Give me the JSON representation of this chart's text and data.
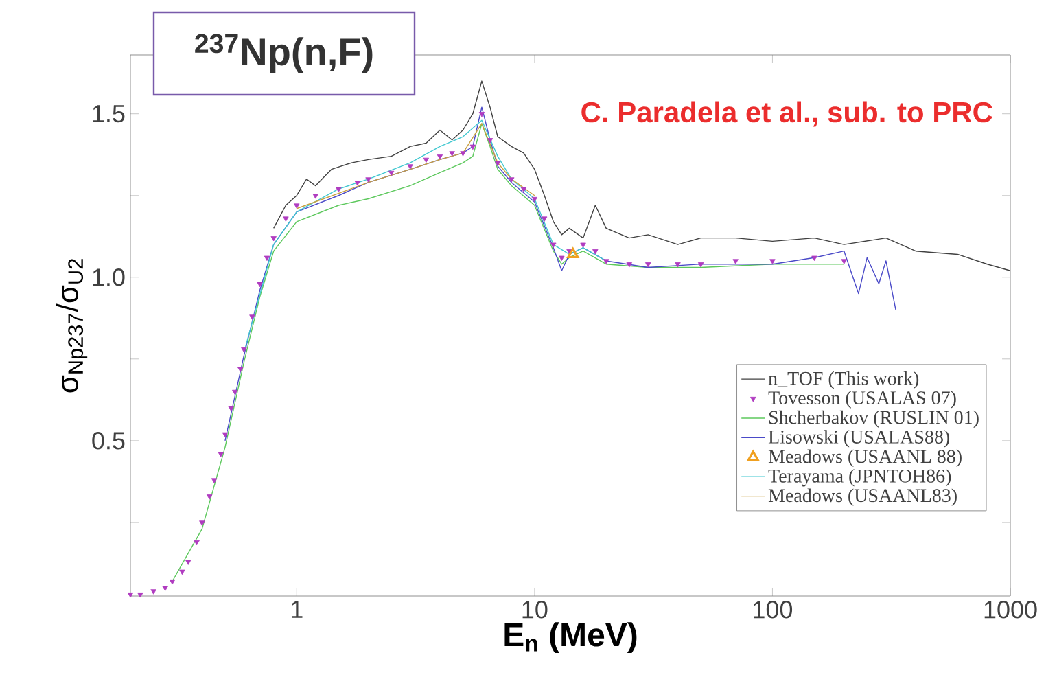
{
  "chart_data": {
    "type": "line",
    "title": "$^{237}$Np(n,F)",
    "xlabel": "E$_{n}$ (MeV)",
    "ylabel": "σ$_{Np237}$/σ$_{U2}$",
    "annotations": [
      "C. Paradela et al., sub. to PRC"
    ],
    "log": "x",
    "xlim": [
      0.2,
      1000
    ],
    "ylim": [
      0.025,
      1.68
    ],
    "xticks": [
      1,
      10,
      100,
      1000
    ],
    "yticks": [
      {
        "value": 0.25,
        "label": null
      },
      {
        "value": 0.5,
        "label": "0.5"
      },
      {
        "value": 0.75,
        "label": null
      },
      {
        "value": 1.0,
        "label": "1.0"
      },
      {
        "value": 1.25,
        "label": null
      },
      {
        "value": 1.5,
        "label": "1.5"
      }
    ],
    "legend": "bottom right",
    "grid": false,
    "series": [
      {
        "name": "n_TOF (This work)",
        "color": "#404040",
        "x": [
          0.8,
          0.9,
          1.0,
          1.1,
          1.2,
          1.4,
          1.7,
          2,
          2.5,
          3,
          3.5,
          4,
          4.5,
          5,
          5.5,
          6,
          6.5,
          7,
          8,
          9,
          10,
          11,
          12,
          13,
          14,
          16,
          18,
          20,
          25,
          30,
          40,
          50,
          70,
          100,
          150,
          200,
          300,
          400,
          600,
          800,
          1000
        ],
        "values": [
          1.15,
          1.22,
          1.25,
          1.3,
          1.28,
          1.33,
          1.35,
          1.36,
          1.37,
          1.4,
          1.41,
          1.45,
          1.42,
          1.45,
          1.5,
          1.6,
          1.52,
          1.43,
          1.4,
          1.38,
          1.33,
          1.25,
          1.17,
          1.13,
          1.15,
          1.12,
          1.22,
          1.15,
          1.12,
          1.13,
          1.1,
          1.12,
          1.12,
          1.11,
          1.12,
          1.1,
          1.12,
          1.08,
          1.07,
          1.04,
          1.02
        ]
      },
      {
        "name": "Tovesson (USALAS 07)",
        "type": "scatter",
        "marker": "triangle down",
        "color": "#b03cc0",
        "x": [
          0.2,
          0.22,
          0.25,
          0.28,
          0.3,
          0.33,
          0.35,
          0.38,
          0.4,
          0.43,
          0.45,
          0.48,
          0.5,
          0.53,
          0.55,
          0.58,
          0.6,
          0.65,
          0.7,
          0.75,
          0.8,
          0.9,
          1,
          1.2,
          1.5,
          1.8,
          2,
          2.5,
          3,
          3.5,
          4,
          4.5,
          5,
          5.5,
          6,
          6.5,
          7,
          8,
          9,
          10,
          11,
          12,
          13,
          14,
          16,
          18,
          20,
          25,
          30,
          40,
          50,
          70,
          100,
          150,
          200
        ],
        "values": [
          0.03,
          0.03,
          0.04,
          0.05,
          0.07,
          0.1,
          0.13,
          0.19,
          0.25,
          0.33,
          0.38,
          0.46,
          0.52,
          0.6,
          0.65,
          0.72,
          0.78,
          0.88,
          0.98,
          1.06,
          1.12,
          1.18,
          1.22,
          1.25,
          1.27,
          1.29,
          1.3,
          1.32,
          1.34,
          1.36,
          1.37,
          1.38,
          1.38,
          1.4,
          1.5,
          1.42,
          1.35,
          1.3,
          1.27,
          1.24,
          1.18,
          1.1,
          1.06,
          1.08,
          1.1,
          1.08,
          1.05,
          1.04,
          1.04,
          1.04,
          1.04,
          1.05,
          1.05,
          1.06,
          1.05
        ]
      },
      {
        "name": "Shcherbakov (RUSLIN 01)",
        "color": "#5cc85c",
        "x": [
          0.3,
          0.4,
          0.5,
          0.6,
          0.7,
          0.8,
          1,
          1.5,
          2,
          3,
          4,
          5,
          5.5,
          6,
          6.5,
          7,
          8,
          10,
          12,
          13,
          14,
          16,
          20,
          30,
          50,
          100,
          200
        ],
        "values": [
          0.07,
          0.23,
          0.48,
          0.74,
          0.94,
          1.08,
          1.17,
          1.22,
          1.24,
          1.28,
          1.32,
          1.35,
          1.37,
          1.47,
          1.4,
          1.33,
          1.28,
          1.22,
          1.08,
          1.04,
          1.06,
          1.08,
          1.04,
          1.03,
          1.03,
          1.04,
          1.04
        ]
      },
      {
        "name": "Lisowski (USALAS88)",
        "color": "#4a4ac8",
        "x": [
          0.5,
          0.6,
          0.7,
          0.8,
          1,
          1.5,
          2,
          3,
          4,
          5,
          5.5,
          6,
          6.5,
          7,
          8,
          10,
          12,
          13,
          14,
          16,
          20,
          30,
          50,
          100,
          150,
          200,
          230,
          250,
          280,
          300,
          330
        ],
        "values": [
          0.5,
          0.76,
          0.96,
          1.1,
          1.2,
          1.25,
          1.29,
          1.33,
          1.36,
          1.38,
          1.4,
          1.52,
          1.42,
          1.34,
          1.29,
          1.23,
          1.09,
          1.02,
          1.07,
          1.09,
          1.05,
          1.03,
          1.04,
          1.04,
          1.06,
          1.08,
          0.95,
          1.06,
          0.98,
          1.05,
          0.9
        ]
      },
      {
        "name": "Meadows (USAANL 88)",
        "type": "scatter",
        "marker": "triangle",
        "color": "#f0a020",
        "x": [
          14.5
        ],
        "values": [
          1.07
        ]
      },
      {
        "name": "Terayama (JPNTOH86)",
        "color": "#40c8d0",
        "x": [
          0.6,
          0.8,
          1,
          1.5,
          2,
          3,
          4,
          5,
          6,
          7,
          8,
          10,
          12,
          14,
          16,
          20
        ],
        "values": [
          0.77,
          1.1,
          1.2,
          1.27,
          1.3,
          1.35,
          1.4,
          1.43,
          1.48,
          1.37,
          1.3,
          1.24,
          1.1,
          1.07,
          1.09,
          1.05
        ]
      },
      {
        "name": "Meadows (USAANL83)",
        "color": "#c8a040",
        "x": [
          1,
          2,
          3,
          4,
          5,
          6,
          7,
          8,
          10
        ],
        "values": [
          1.21,
          1.29,
          1.33,
          1.36,
          1.38,
          1.47,
          1.35,
          1.3,
          1.25
        ]
      }
    ]
  }
}
